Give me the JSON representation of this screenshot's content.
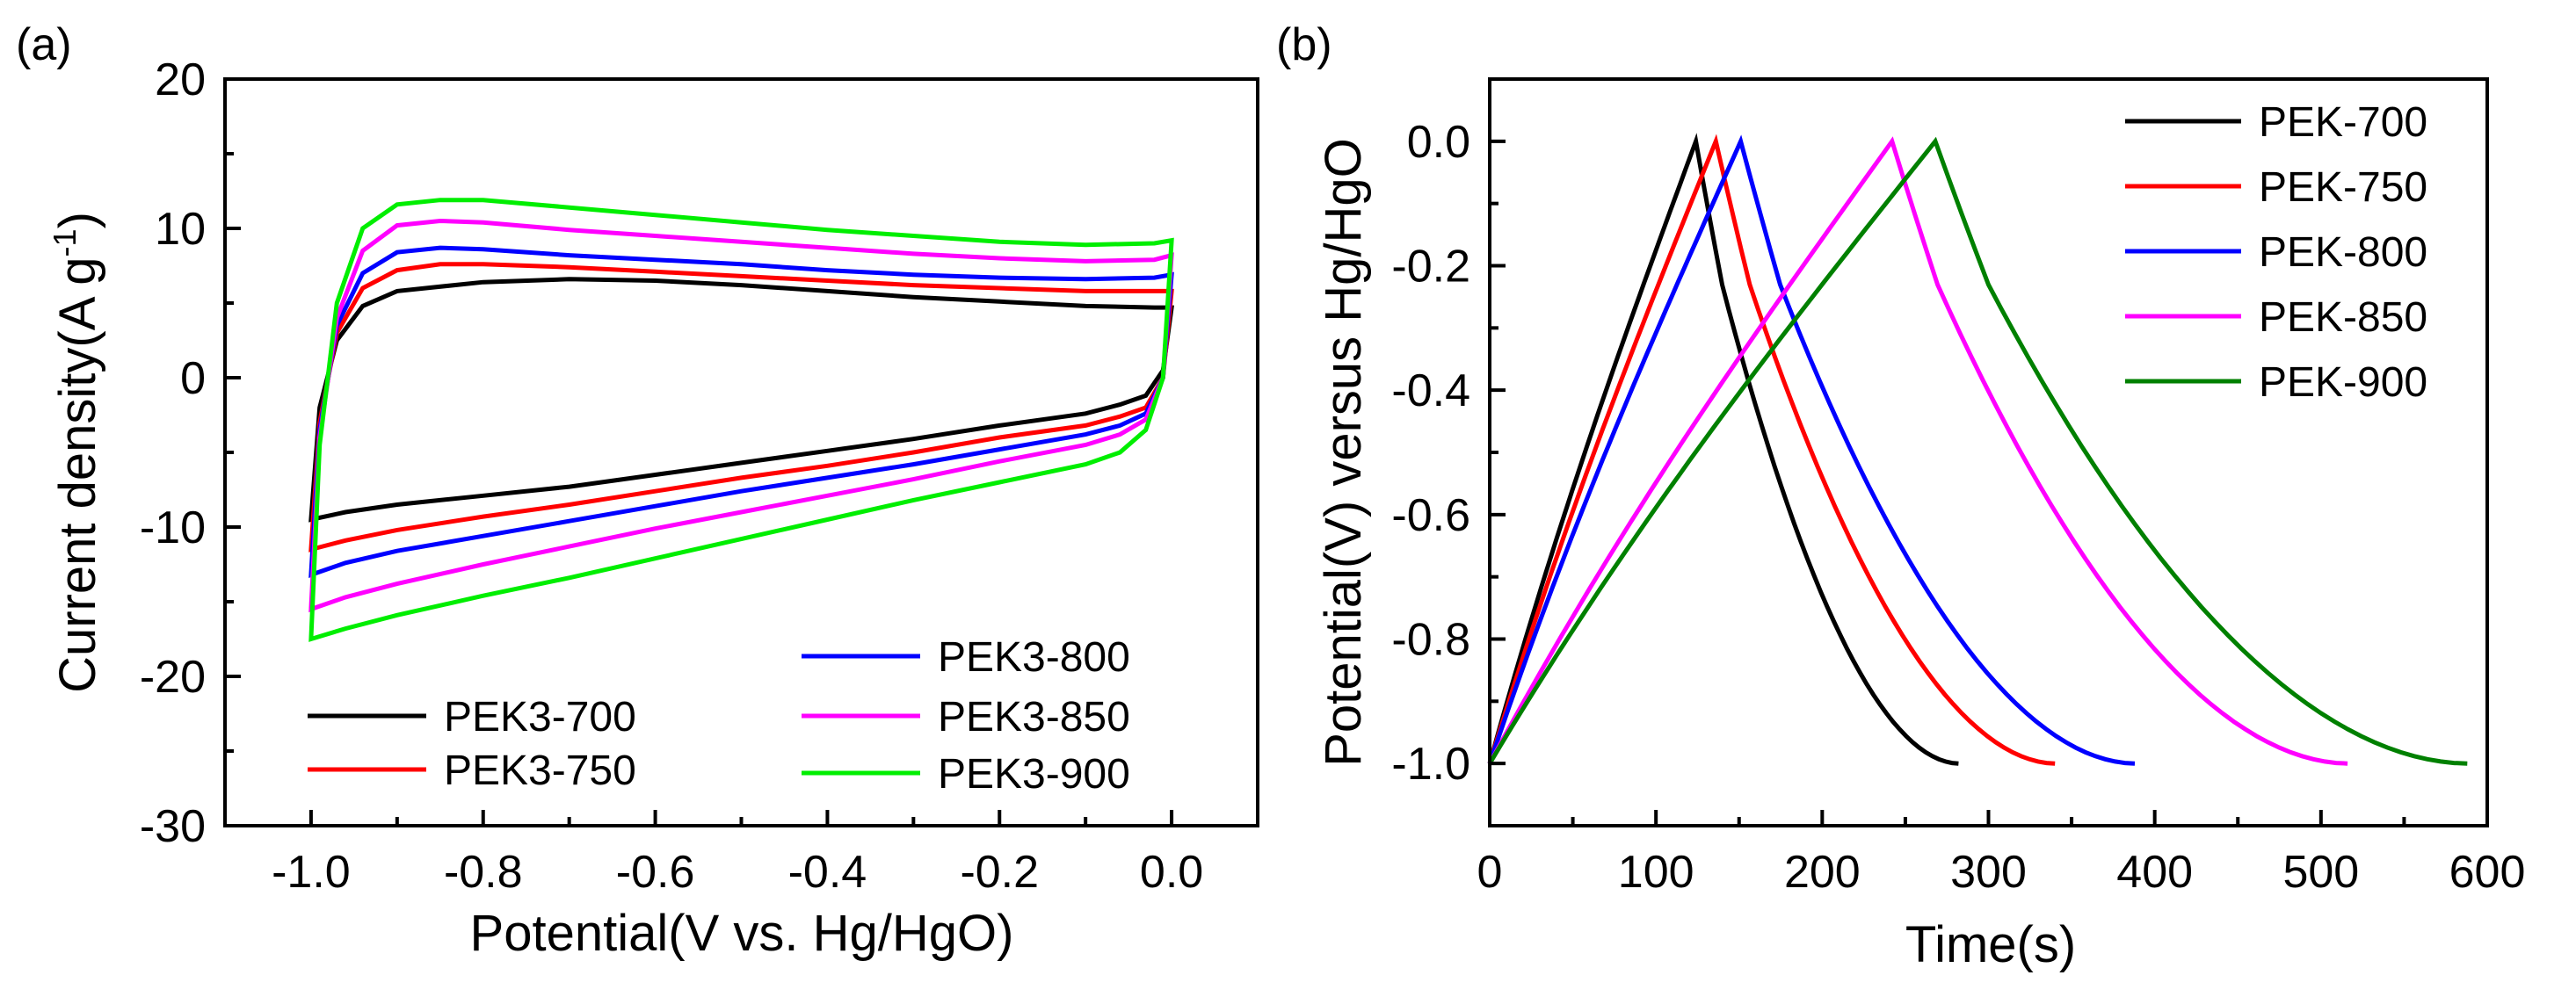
{
  "chart_data": [
    {
      "type": "line",
      "panel_label": "(a)",
      "title": "",
      "xlabel": "Potential(V vs. Hg/HgO)",
      "ylabel": "Current density(A g",
      "ylabel_sup": "-1",
      "ylabel_end": ")",
      "xlim": [
        -1.1,
        0.1
      ],
      "ylim": [
        -30,
        20
      ],
      "xticks": [
        -1.0,
        -0.8,
        -0.6,
        -0.4,
        -0.2,
        0.0
      ],
      "xtick_labels": [
        "-1.0",
        "-0.8",
        "-0.6",
        "-0.4",
        "-0.2",
        "0.0"
      ],
      "yticks": [
        -30,
        -20,
        -10,
        0,
        10,
        20
      ],
      "ytick_labels": [
        "-30",
        "-20",
        "-10",
        "0",
        "10",
        "20"
      ],
      "legend_placement": "bottom",
      "series": [
        {
          "name": "PEK3-700",
          "color": "#000000",
          "x": [
            -1.0,
            -0.99,
            -0.97,
            -0.94,
            -0.9,
            -0.8,
            -0.7,
            -0.6,
            -0.5,
            -0.4,
            -0.3,
            -0.2,
            -0.1,
            -0.02,
            0.0,
            -0.01,
            -0.03,
            -0.06,
            -0.1,
            -0.2,
            -0.3,
            -0.4,
            -0.5,
            -0.6,
            -0.7,
            -0.8,
            -0.9,
            -0.96,
            -1.0,
            -1.0
          ],
          "y": [
            -9.5,
            -2.0,
            2.5,
            4.8,
            5.8,
            6.4,
            6.6,
            6.5,
            6.2,
            5.8,
            5.4,
            5.1,
            4.8,
            4.7,
            4.7,
            0.5,
            -1.2,
            -1.8,
            -2.4,
            -3.2,
            -4.1,
            -4.9,
            -5.7,
            -6.5,
            -7.3,
            -7.9,
            -8.5,
            -9.0,
            -9.5,
            -9.5
          ]
        },
        {
          "name": "PEK3-750",
          "color": "#ff0000",
          "x": [
            -1.0,
            -0.99,
            -0.97,
            -0.94,
            -0.9,
            -0.85,
            -0.8,
            -0.7,
            -0.6,
            -0.5,
            -0.4,
            -0.3,
            -0.2,
            -0.1,
            -0.02,
            0.0,
            -0.01,
            -0.03,
            -0.06,
            -0.1,
            -0.2,
            -0.3,
            -0.4,
            -0.5,
            -0.6,
            -0.7,
            -0.8,
            -0.9,
            -0.96,
            -1.0,
            -1.0
          ],
          "y": [
            -11.5,
            -3.0,
            3.0,
            6.0,
            7.2,
            7.6,
            7.6,
            7.4,
            7.1,
            6.8,
            6.5,
            6.2,
            6.0,
            5.8,
            5.8,
            5.8,
            0.0,
            -2.0,
            -2.6,
            -3.2,
            -4.0,
            -5.0,
            -5.9,
            -6.7,
            -7.6,
            -8.5,
            -9.3,
            -10.2,
            -10.9,
            -11.5,
            -11.5
          ]
        },
        {
          "name": "PEK3-800",
          "color": "#0000ff",
          "x": [
            -1.0,
            -0.99,
            -0.97,
            -0.94,
            -0.9,
            -0.85,
            -0.8,
            -0.7,
            -0.6,
            -0.5,
            -0.4,
            -0.3,
            -0.2,
            -0.1,
            -0.02,
            0.0,
            -0.01,
            -0.03,
            -0.06,
            -0.1,
            -0.2,
            -0.3,
            -0.4,
            -0.5,
            -0.6,
            -0.7,
            -0.8,
            -0.9,
            -0.96,
            -1.0,
            -1.0
          ],
          "y": [
            -13.2,
            -3.5,
            3.5,
            7.0,
            8.4,
            8.7,
            8.6,
            8.2,
            7.9,
            7.6,
            7.2,
            6.9,
            6.7,
            6.6,
            6.7,
            6.9,
            0.0,
            -2.4,
            -3.2,
            -3.8,
            -4.8,
            -5.8,
            -6.7,
            -7.6,
            -8.6,
            -9.6,
            -10.6,
            -11.6,
            -12.4,
            -13.2,
            -13.2
          ]
        },
        {
          "name": "PEK3-850",
          "color": "#ff00ff",
          "x": [
            -1.0,
            -0.99,
            -0.97,
            -0.94,
            -0.9,
            -0.85,
            -0.8,
            -0.7,
            -0.6,
            -0.5,
            -0.4,
            -0.3,
            -0.2,
            -0.1,
            -0.02,
            0.0,
            -0.01,
            -0.03,
            -0.06,
            -0.1,
            -0.2,
            -0.3,
            -0.4,
            -0.5,
            -0.6,
            -0.7,
            -0.8,
            -0.9,
            -0.96,
            -1.0,
            -1.0
          ],
          "y": [
            -15.5,
            -4.0,
            4.0,
            8.5,
            10.2,
            10.5,
            10.4,
            9.9,
            9.5,
            9.1,
            8.7,
            8.3,
            8.0,
            7.8,
            7.9,
            8.2,
            0.0,
            -2.8,
            -3.8,
            -4.5,
            -5.6,
            -6.8,
            -7.9,
            -9.0,
            -10.1,
            -11.3,
            -12.5,
            -13.8,
            -14.7,
            -15.5,
            -15.5
          ]
        },
        {
          "name": "PEK3-900",
          "color": "#00ee00",
          "x": [
            -1.0,
            -0.99,
            -0.97,
            -0.94,
            -0.9,
            -0.85,
            -0.8,
            -0.7,
            -0.6,
            -0.5,
            -0.4,
            -0.3,
            -0.2,
            -0.1,
            -0.02,
            0.0,
            -0.01,
            -0.03,
            -0.06,
            -0.1,
            -0.2,
            -0.3,
            -0.4,
            -0.5,
            -0.6,
            -0.7,
            -0.8,
            -0.9,
            -0.96,
            -1.0,
            -1.0
          ],
          "y": [
            -17.5,
            -4.5,
            5.0,
            10.0,
            11.6,
            11.9,
            11.9,
            11.4,
            10.9,
            10.4,
            9.9,
            9.5,
            9.1,
            8.9,
            9.0,
            9.2,
            0.0,
            -3.5,
            -5.0,
            -5.8,
            -7.0,
            -8.2,
            -9.5,
            -10.8,
            -12.1,
            -13.4,
            -14.6,
            -15.9,
            -16.8,
            -17.5,
            -17.5
          ]
        }
      ]
    },
    {
      "type": "line",
      "panel_label": "(b)",
      "title": "",
      "xlabel": "Time(s)",
      "ylabel": "Potential(V) versus Hg/HgO",
      "xlim": [
        0,
        600
      ],
      "ylim": [
        -1.1,
        0.1
      ],
      "xticks": [
        0,
        100,
        200,
        300,
        400,
        500,
        600
      ],
      "xtick_labels": [
        "0",
        "100",
        "200",
        "300",
        "400",
        "500",
        "600"
      ],
      "yticks": [
        -1.0,
        -0.8,
        -0.6,
        -0.4,
        -0.2,
        0.0
      ],
      "ytick_labels": [
        "-1.0",
        "-0.8",
        "-0.6",
        "-0.4",
        "-0.2",
        "0.0"
      ],
      "legend_placement": "top-right",
      "series": [
        {
          "name": "PEK-700",
          "color": "#000000",
          "charge_end_s": 124,
          "discharge_end_s": 282
        },
        {
          "name": "PEK-750",
          "color": "#ff0000",
          "charge_end_s": 136,
          "discharge_end_s": 340
        },
        {
          "name": "PEK-800",
          "color": "#0000ff",
          "charge_end_s": 151,
          "discharge_end_s": 388
        },
        {
          "name": "PEK-850",
          "color": "#ff00ff",
          "charge_end_s": 242,
          "discharge_end_s": 516
        },
        {
          "name": "PEK-900",
          "color": "#008000",
          "charge_end_s": 268,
          "discharge_end_s": 588
        }
      ]
    }
  ]
}
